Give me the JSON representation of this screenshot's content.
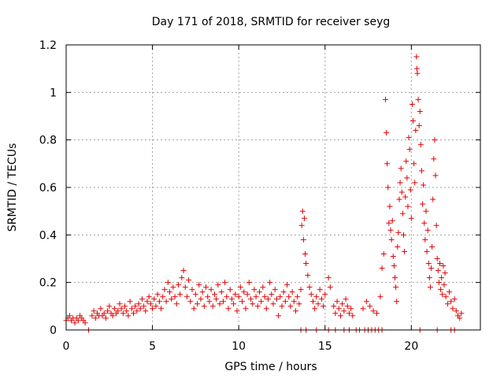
{
  "chart_data": {
    "type": "scatter",
    "title": "Day 171 of 2018, SRMTID for receiver seyg",
    "xlabel": "GPS time / hours",
    "ylabel": "SRMTID / TECUs",
    "xlim": [
      0,
      24
    ],
    "ylim": [
      0,
      1.2
    ],
    "xticks": [
      0,
      5,
      10,
      15,
      20
    ],
    "xtick_labels": [
      "0",
      "5",
      "10",
      "15",
      "20"
    ],
    "yticks": [
      0,
      0.2,
      0.4,
      0.6,
      0.8,
      1.0,
      1.2
    ],
    "ytick_labels": [
      "0",
      "0.2",
      "0.4",
      "0.6",
      "0.8",
      "1",
      "1.2"
    ],
    "grid": true,
    "marker": "+",
    "color": "#e00000",
    "series": [
      {
        "name": "seyg",
        "points": [
          [
            0.0,
            0.04
          ],
          [
            0.1,
            0.05
          ],
          [
            0.2,
            0.06
          ],
          [
            0.3,
            0.04
          ],
          [
            0.4,
            0.05
          ],
          [
            0.5,
            0.03
          ],
          [
            0.6,
            0.05
          ],
          [
            0.7,
            0.04
          ],
          [
            0.8,
            0.06
          ],
          [
            0.9,
            0.05
          ],
          [
            1.0,
            0.04
          ],
          [
            1.1,
            0.03
          ],
          [
            1.5,
            0.06
          ],
          [
            1.6,
            0.08
          ],
          [
            1.7,
            0.05
          ],
          [
            1.8,
            0.07
          ],
          [
            1.9,
            0.06
          ],
          [
            2.0,
            0.09
          ],
          [
            2.1,
            0.06
          ],
          [
            2.2,
            0.07
          ],
          [
            2.3,
            0.05
          ],
          [
            2.4,
            0.08
          ],
          [
            2.5,
            0.1
          ],
          [
            2.6,
            0.07
          ],
          [
            2.7,
            0.06
          ],
          [
            2.8,
            0.09
          ],
          [
            2.9,
            0.07
          ],
          [
            3.0,
            0.08
          ],
          [
            3.1,
            0.11
          ],
          [
            3.2,
            0.09
          ],
          [
            3.3,
            0.07
          ],
          [
            3.4,
            0.1
          ],
          [
            3.5,
            0.08
          ],
          [
            3.6,
            0.06
          ],
          [
            3.7,
            0.12
          ],
          [
            3.8,
            0.09
          ],
          [
            3.9,
            0.07
          ],
          [
            4.0,
            0.1
          ],
          [
            4.1,
            0.08
          ],
          [
            4.2,
            0.11
          ],
          [
            4.3,
            0.09
          ],
          [
            4.4,
            0.13
          ],
          [
            4.5,
            0.1
          ],
          [
            4.6,
            0.08
          ],
          [
            4.7,
            0.12
          ],
          [
            4.8,
            0.14
          ],
          [
            4.9,
            0.11
          ],
          [
            5.0,
            0.09
          ],
          [
            5.1,
            0.13
          ],
          [
            5.2,
            0.1
          ],
          [
            5.3,
            0.15
          ],
          [
            5.4,
            0.12
          ],
          [
            5.5,
            0.09
          ],
          [
            5.6,
            0.14
          ],
          [
            5.7,
            0.17
          ],
          [
            5.8,
            0.12
          ],
          [
            5.9,
            0.2
          ],
          [
            6.0,
            0.16
          ],
          [
            6.1,
            0.13
          ],
          [
            6.2,
            0.18
          ],
          [
            6.3,
            0.14
          ],
          [
            6.4,
            0.11
          ],
          [
            6.5,
            0.19
          ],
          [
            6.6,
            0.15
          ],
          [
            6.7,
            0.22
          ],
          [
            6.8,
            0.25
          ],
          [
            6.9,
            0.18
          ],
          [
            7.0,
            0.14
          ],
          [
            7.1,
            0.21
          ],
          [
            7.2,
            0.12
          ],
          [
            7.3,
            0.17
          ],
          [
            7.4,
            0.09
          ],
          [
            7.5,
            0.15
          ],
          [
            7.6,
            0.11
          ],
          [
            7.7,
            0.19
          ],
          [
            7.8,
            0.13
          ],
          [
            7.9,
            0.16
          ],
          [
            8.0,
            0.1
          ],
          [
            8.1,
            0.18
          ],
          [
            8.2,
            0.14
          ],
          [
            8.3,
            0.12
          ],
          [
            8.4,
            0.17
          ],
          [
            8.5,
            0.1
          ],
          [
            8.6,
            0.15
          ],
          [
            8.7,
            0.13
          ],
          [
            8.8,
            0.19
          ],
          [
            8.9,
            0.11
          ],
          [
            9.0,
            0.16
          ],
          [
            9.1,
            0.12
          ],
          [
            9.2,
            0.2
          ],
          [
            9.3,
            0.14
          ],
          [
            9.4,
            0.09
          ],
          [
            9.5,
            0.17
          ],
          [
            9.6,
            0.13
          ],
          [
            9.7,
            0.11
          ],
          [
            9.8,
            0.15
          ],
          [
            9.9,
            0.08
          ],
          [
            10.0,
            0.14
          ],
          [
            10.1,
            0.18
          ],
          [
            10.2,
            0.12
          ],
          [
            10.3,
            0.16
          ],
          [
            10.4,
            0.09
          ],
          [
            10.5,
            0.15
          ],
          [
            10.6,
            0.2
          ],
          [
            10.7,
            0.13
          ],
          [
            10.8,
            0.11
          ],
          [
            10.9,
            0.17
          ],
          [
            11.0,
            0.14
          ],
          [
            11.1,
            0.1
          ],
          [
            11.2,
            0.16
          ],
          [
            11.3,
            0.12
          ],
          [
            11.4,
            0.18
          ],
          [
            11.5,
            0.14
          ],
          [
            11.6,
            0.09
          ],
          [
            11.7,
            0.13
          ],
          [
            11.8,
            0.2
          ],
          [
            11.9,
            0.15
          ],
          [
            12.0,
            0.11
          ],
          [
            12.1,
            0.17
          ],
          [
            12.2,
            0.13
          ],
          [
            12.3,
            0.06
          ],
          [
            12.4,
            0.14
          ],
          [
            12.5,
            0.1
          ],
          [
            12.6,
            0.16
          ],
          [
            12.7,
            0.12
          ],
          [
            12.8,
            0.19
          ],
          [
            12.9,
            0.14
          ],
          [
            13.0,
            0.1
          ],
          [
            13.1,
            0.16
          ],
          [
            13.2,
            0.12
          ],
          [
            13.3,
            0.08
          ],
          [
            13.4,
            0.14
          ],
          [
            13.5,
            0.11
          ],
          [
            13.6,
            0.17
          ],
          [
            13.65,
            0.44
          ],
          [
            13.7,
            0.5
          ],
          [
            13.75,
            0.38
          ],
          [
            13.8,
            0.47
          ],
          [
            13.85,
            0.32
          ],
          [
            13.9,
            0.28
          ],
          [
            14.0,
            0.23
          ],
          [
            14.1,
            0.18
          ],
          [
            14.2,
            0.15
          ],
          [
            14.3,
            0.12
          ],
          [
            14.4,
            0.09
          ],
          [
            14.5,
            0.14
          ],
          [
            14.6,
            0.11
          ],
          [
            14.7,
            0.17
          ],
          [
            14.8,
            0.13
          ],
          [
            14.9,
            0.1
          ],
          [
            15.0,
            0.15
          ],
          [
            15.2,
            0.22
          ],
          [
            15.3,
            0.18
          ],
          [
            15.5,
            0.1
          ],
          [
            15.6,
            0.07
          ],
          [
            15.7,
            0.12
          ],
          [
            15.8,
            0.09
          ],
          [
            15.9,
            0.06
          ],
          [
            16.0,
            0.11
          ],
          [
            16.1,
            0.08
          ],
          [
            16.2,
            0.13
          ],
          [
            16.3,
            0.1
          ],
          [
            16.4,
            0.07
          ],
          [
            16.5,
            0.09
          ],
          [
            16.6,
            0.06
          ],
          [
            17.2,
            0.09
          ],
          [
            17.4,
            0.12
          ],
          [
            17.6,
            0.1
          ],
          [
            17.8,
            0.08
          ],
          [
            18.0,
            0.07
          ],
          [
            18.2,
            0.14
          ],
          [
            18.3,
            0.26
          ],
          [
            18.4,
            0.32
          ],
          [
            18.5,
            0.97
          ],
          [
            18.55,
            0.83
          ],
          [
            18.6,
            0.7
          ],
          [
            18.65,
            0.6
          ],
          [
            18.7,
            0.45
          ],
          [
            18.75,
            0.52
          ],
          [
            18.8,
            0.42
          ],
          [
            18.85,
            0.38
          ],
          [
            18.9,
            0.46
          ],
          [
            18.95,
            0.31
          ],
          [
            19.0,
            0.27
          ],
          [
            19.05,
            0.22
          ],
          [
            19.1,
            0.18
          ],
          [
            19.15,
            0.12
          ],
          [
            19.2,
            0.35
          ],
          [
            19.25,
            0.41
          ],
          [
            19.3,
            0.55
          ],
          [
            19.35,
            0.62
          ],
          [
            19.4,
            0.68
          ],
          [
            19.45,
            0.58
          ],
          [
            19.5,
            0.49
          ],
          [
            19.55,
            0.4
          ],
          [
            19.6,
            0.33
          ],
          [
            19.65,
            0.56
          ],
          [
            19.7,
            0.71
          ],
          [
            19.75,
            0.64
          ],
          [
            19.8,
            0.52
          ],
          [
            19.85,
            0.81
          ],
          [
            19.9,
            0.76
          ],
          [
            19.95,
            0.59
          ],
          [
            20.0,
            0.47
          ],
          [
            20.05,
            0.95
          ],
          [
            20.1,
            0.88
          ],
          [
            20.15,
            0.7
          ],
          [
            20.2,
            0.62
          ],
          [
            20.25,
            0.84
          ],
          [
            20.3,
            1.15
          ],
          [
            20.32,
            1.1
          ],
          [
            20.35,
            1.08
          ],
          [
            20.4,
            0.97
          ],
          [
            20.45,
            0.86
          ],
          [
            20.5,
            0.92
          ],
          [
            20.55,
            0.78
          ],
          [
            20.6,
            0.67
          ],
          [
            20.65,
            0.53
          ],
          [
            20.7,
            0.61
          ],
          [
            20.75,
            0.45
          ],
          [
            20.8,
            0.38
          ],
          [
            20.85,
            0.5
          ],
          [
            20.9,
            0.33
          ],
          [
            20.95,
            0.42
          ],
          [
            21.0,
            0.28
          ],
          [
            21.05,
            0.22
          ],
          [
            21.1,
            0.18
          ],
          [
            21.15,
            0.26
          ],
          [
            21.2,
            0.35
          ],
          [
            21.25,
            0.55
          ],
          [
            21.3,
            0.72
          ],
          [
            21.35,
            0.8
          ],
          [
            21.4,
            0.65
          ],
          [
            21.45,
            0.44
          ],
          [
            21.5,
            0.3
          ],
          [
            21.55,
            0.25
          ],
          [
            21.6,
            0.2
          ],
          [
            21.65,
            0.28
          ],
          [
            21.7,
            0.17
          ],
          [
            21.75,
            0.22
          ],
          [
            21.8,
            0.15
          ],
          [
            21.85,
            0.27
          ],
          [
            21.9,
            0.19
          ],
          [
            21.95,
            0.24
          ],
          [
            22.0,
            0.14
          ],
          [
            22.1,
            0.11
          ],
          [
            22.2,
            0.16
          ],
          [
            22.3,
            0.12
          ],
          [
            22.4,
            0.09
          ],
          [
            22.5,
            0.13
          ],
          [
            22.6,
            0.08
          ],
          [
            22.7,
            0.06
          ],
          [
            22.8,
            0.05
          ],
          [
            22.9,
            0.07
          ]
        ]
      }
    ],
    "zero_markers": [
      1.3,
      13.6,
      13.9,
      14.5,
      15.2,
      15.6,
      16.1,
      16.4,
      16.8,
      17.0,
      17.3,
      17.5,
      17.7,
      17.9,
      18.1,
      18.3,
      20.5,
      21.5,
      22.3,
      22.5
    ]
  }
}
